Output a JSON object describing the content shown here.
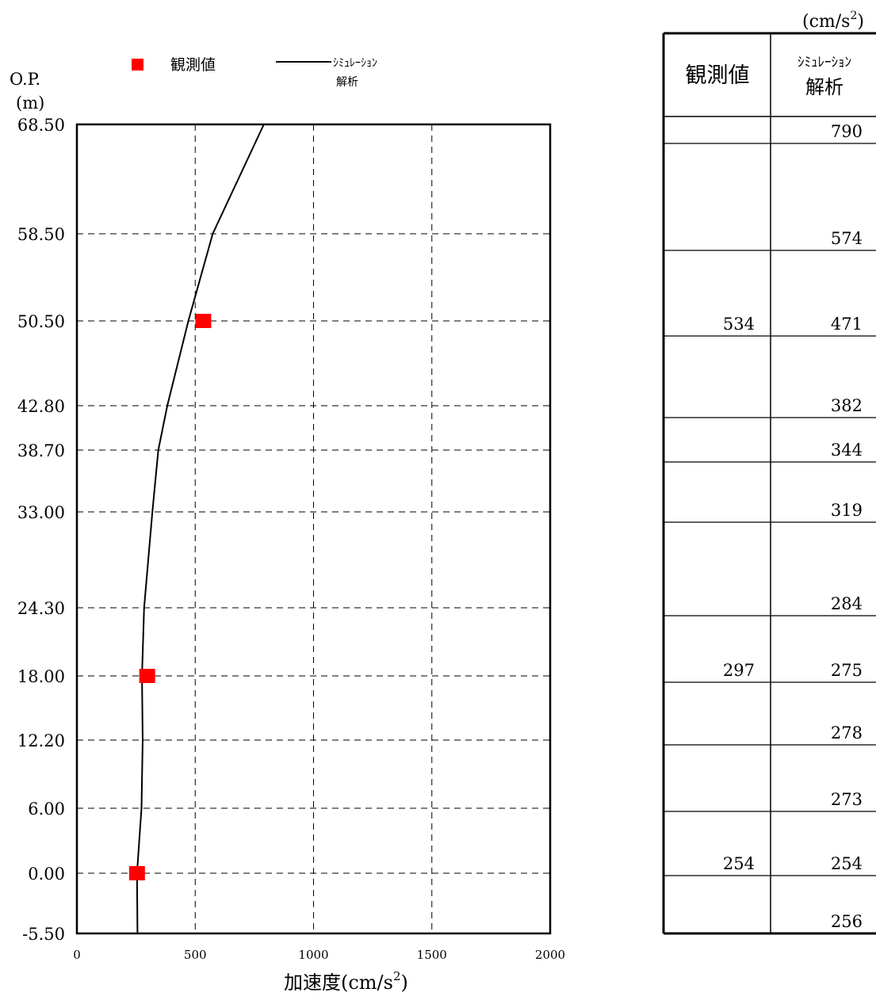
{
  "chart_data": {
    "type": "line",
    "ylabel_line1": "O.P.",
    "ylabel_line2": "(m)",
    "xlabel_prefix": "加速度(cm/s",
    "xlabel_exp": "2",
    "xlabel_suffix": ")",
    "xlim": [
      0,
      2000
    ],
    "xticks": [
      "0",
      "500",
      "1000",
      "1500",
      "2000"
    ],
    "ylevels": [
      68.5,
      58.5,
      50.5,
      42.8,
      38.7,
      33.0,
      24.3,
      18.0,
      12.2,
      6.0,
      0.0,
      -5.5
    ],
    "ylabels": [
      "68.50",
      "58.50",
      "50.50",
      "42.80",
      "38.70",
      "33.00",
      "24.30",
      "18.00",
      "12.20",
      "6.00",
      "0.00",
      "-5.50"
    ],
    "grid": true,
    "legend_position": "top",
    "legend": {
      "observed": "観測値",
      "simulation_line1": "ｼﾐｭﾚｰｼｮﾝ",
      "simulation_line2": "解析"
    },
    "series": [
      {
        "name": "ｼﾐｭﾚｰｼｮﾝ解析",
        "style": "line",
        "color": "#000000",
        "points": [
          {
            "x": 790,
            "y": 68.5
          },
          {
            "x": 574,
            "y": 58.5
          },
          {
            "x": 471,
            "y": 50.5
          },
          {
            "x": 382,
            "y": 42.8
          },
          {
            "x": 344,
            "y": 38.7
          },
          {
            "x": 319,
            "y": 33.0
          },
          {
            "x": 284,
            "y": 24.3
          },
          {
            "x": 275,
            "y": 18.0
          },
          {
            "x": 278,
            "y": 12.2
          },
          {
            "x": 273,
            "y": 6.0
          },
          {
            "x": 254,
            "y": 0.0
          },
          {
            "x": 256,
            "y": -5.5
          }
        ]
      },
      {
        "name": "観測値",
        "style": "marker",
        "color": "#ff0000",
        "points": [
          {
            "x": 534,
            "y": 50.5
          },
          {
            "x": 297,
            "y": 18.0
          },
          {
            "x": 254,
            "y": 0.0
          }
        ]
      }
    ],
    "table": {
      "unit_prefix": "(cm/s",
      "unit_exp": "2",
      "unit_suffix": ")",
      "header_observed": "観測値",
      "header_sim_line1": "ｼﾐｭﾚｰｼｮﾝ",
      "header_sim_line2": "解析",
      "rows": [
        {
          "observed": "",
          "simulation": "790"
        },
        {
          "observed": "",
          "simulation": "574"
        },
        {
          "observed": "534",
          "simulation": "471"
        },
        {
          "observed": "",
          "simulation": "382"
        },
        {
          "observed": "",
          "simulation": "344"
        },
        {
          "observed": "",
          "simulation": "319"
        },
        {
          "observed": "",
          "simulation": "284"
        },
        {
          "observed": "297",
          "simulation": "275"
        },
        {
          "observed": "",
          "simulation": "278"
        },
        {
          "observed": "",
          "simulation": "273"
        },
        {
          "observed": "254",
          "simulation": "254"
        },
        {
          "observed": "",
          "simulation": "256"
        }
      ]
    }
  }
}
